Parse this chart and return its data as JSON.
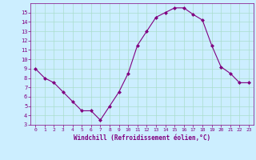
{
  "x": [
    0,
    1,
    2,
    3,
    4,
    5,
    6,
    7,
    8,
    9,
    10,
    11,
    12,
    13,
    14,
    15,
    16,
    17,
    18,
    19,
    20,
    21,
    22,
    23
  ],
  "y": [
    9,
    8,
    7.5,
    6.5,
    5.5,
    4.5,
    4.5,
    3.5,
    5,
    6.5,
    8.5,
    11.5,
    13,
    14.5,
    15,
    15.5,
    15.5,
    14.8,
    14.2,
    11.5,
    9.2,
    8.5,
    7.5,
    7.5
  ],
  "line_color": "#800080",
  "marker": "D",
  "marker_size": 2,
  "bg_color": "#cceeff",
  "grid_color": "#aaddcc",
  "tick_color": "#800080",
  "label_color": "#800080",
  "xlabel": "Windchill (Refroidissement éolien,°C)",
  "ylim": [
    3,
    16
  ],
  "xlim": [
    -0.5,
    23.5
  ],
  "yticks": [
    3,
    4,
    5,
    6,
    7,
    8,
    9,
    10,
    11,
    12,
    13,
    14,
    15
  ],
  "xticks": [
    0,
    1,
    2,
    3,
    4,
    5,
    6,
    7,
    8,
    9,
    10,
    11,
    12,
    13,
    14,
    15,
    16,
    17,
    18,
    19,
    20,
    21,
    22,
    23
  ]
}
